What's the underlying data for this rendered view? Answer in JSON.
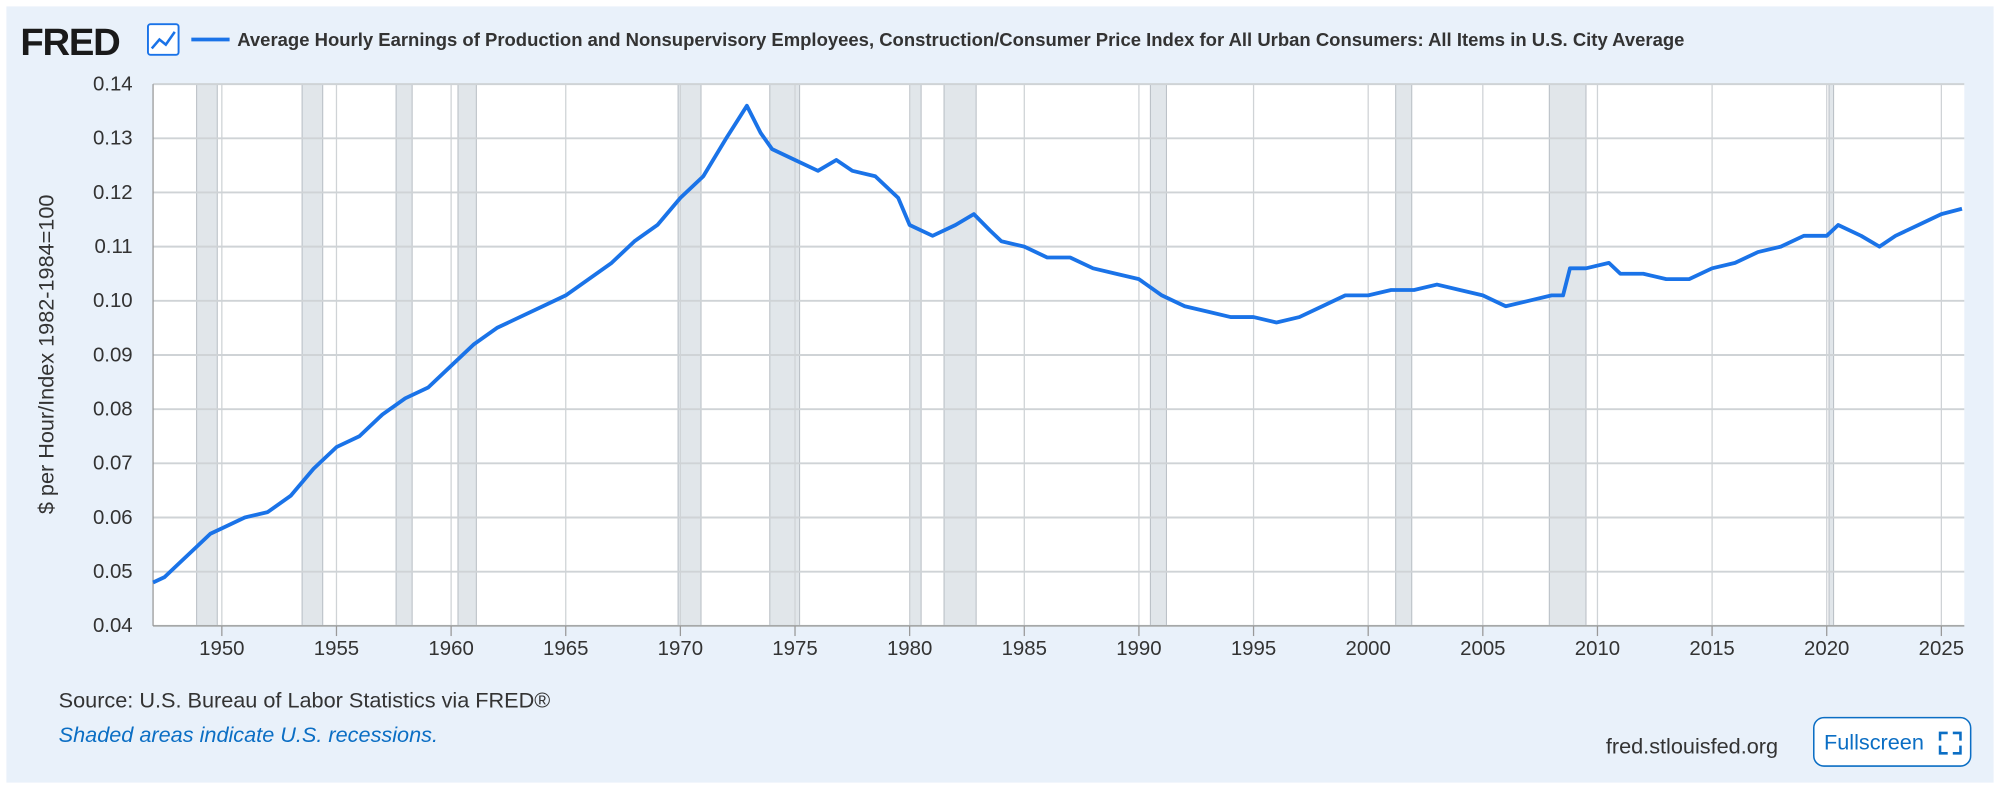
{
  "page": {
    "logo": "FRED",
    "source": "Source: U.S. Bureau of Labor Statistics via FRED®",
    "note": "Shaded areas indicate U.S. recessions.",
    "site": "fred.stlouisfed.org",
    "button": "Fullscreen"
  },
  "chart_data": {
    "type": "line",
    "y_label": "$ per Hour/Index 1982-1984=100",
    "xlim": [
      1947,
      2026
    ],
    "xticks": [
      1950,
      1955,
      1960,
      1965,
      1970,
      1975,
      1980,
      1985,
      1990,
      1995,
      2000,
      2005,
      2010,
      2015,
      2020,
      2025
    ],
    "ylim": [
      0.04,
      0.14
    ],
    "yticks": [
      0.04,
      0.05,
      0.06,
      0.07,
      0.08,
      0.09,
      {
        "value": 0.1,
        "label": "0.10"
      },
      0.11,
      0.12,
      0.13,
      0.14
    ],
    "grid": true,
    "recession_color": "#e1e6ea",
    "recessions": [
      [
        1948.9,
        1949.8
      ],
      [
        1953.5,
        1954.4
      ],
      [
        1957.6,
        1958.3
      ],
      [
        1960.3,
        1961.1
      ],
      [
        1969.9,
        1970.9
      ],
      [
        1973.9,
        1975.2
      ],
      [
        1980.0,
        1980.5
      ],
      [
        1981.5,
        1982.9
      ],
      [
        1990.5,
        1991.2
      ],
      [
        2001.2,
        2001.9
      ],
      [
        2007.9,
        2009.5
      ],
      [
        2020.1,
        2020.3
      ]
    ],
    "x": [
      1947.0,
      1947.5,
      1948,
      1949,
      1949.5,
      1950,
      1951,
      1952,
      1953,
      1954,
      1955,
      1956,
      1957,
      1958,
      1959,
      1960,
      1961,
      1962,
      1963,
      1964,
      1965,
      1966,
      1967,
      1968,
      1969,
      1970,
      1971,
      1972,
      1972.9,
      1973.5,
      1974,
      1975,
      1976,
      1976.8,
      1977.5,
      1978.5,
      1979.5,
      1980,
      1981,
      1982,
      1982.8,
      1983.5,
      1984,
      1985,
      1986,
      1987,
      1988,
      1989,
      1990,
      1991,
      1992,
      1993,
      1994,
      1995,
      1996,
      1997,
      1998,
      1999,
      2000,
      2001,
      2002,
      2003,
      2004,
      2005,
      2006,
      2007,
      2008,
      2008.5,
      2008.8,
      2009.5,
      2010.5,
      2011,
      2012,
      2013,
      2014,
      2015,
      2016,
      2017,
      2018,
      2019,
      2020,
      2020.5,
      2021.5,
      2022.3,
      2023,
      2024,
      2025,
      2025.9
    ],
    "series": [
      {
        "name": "Average Hourly Earnings of Production and Nonsupervisory Employees, Construction/Consumer Price Index for All Urban Consumers: All Items in U.S. City Average",
        "color": "#1a73e8",
        "values": [
          0.048,
          0.049,
          0.051,
          0.055,
          0.057,
          0.058,
          0.06,
          0.061,
          0.064,
          0.069,
          0.073,
          0.075,
          0.079,
          0.082,
          0.084,
          0.088,
          0.092,
          0.095,
          0.097,
          0.099,
          0.101,
          0.104,
          0.107,
          0.111,
          0.114,
          0.119,
          0.123,
          0.13,
          0.136,
          0.131,
          0.128,
          0.126,
          0.124,
          0.126,
          0.124,
          0.123,
          0.119,
          0.114,
          0.112,
          0.114,
          0.116,
          0.113,
          0.111,
          0.11,
          0.108,
          0.108,
          0.106,
          0.105,
          0.104,
          0.101,
          0.099,
          0.098,
          0.097,
          0.097,
          0.096,
          0.097,
          0.099,
          0.101,
          0.101,
          0.102,
          0.102,
          0.103,
          0.102,
          0.101,
          0.099,
          0.1,
          0.101,
          0.101,
          0.106,
          0.106,
          0.107,
          0.105,
          0.105,
          0.104,
          0.104,
          0.106,
          0.107,
          0.109,
          0.11,
          0.112,
          0.112,
          0.114,
          0.112,
          0.11,
          0.112,
          0.114,
          0.116,
          0.117
        ]
      }
    ]
  }
}
